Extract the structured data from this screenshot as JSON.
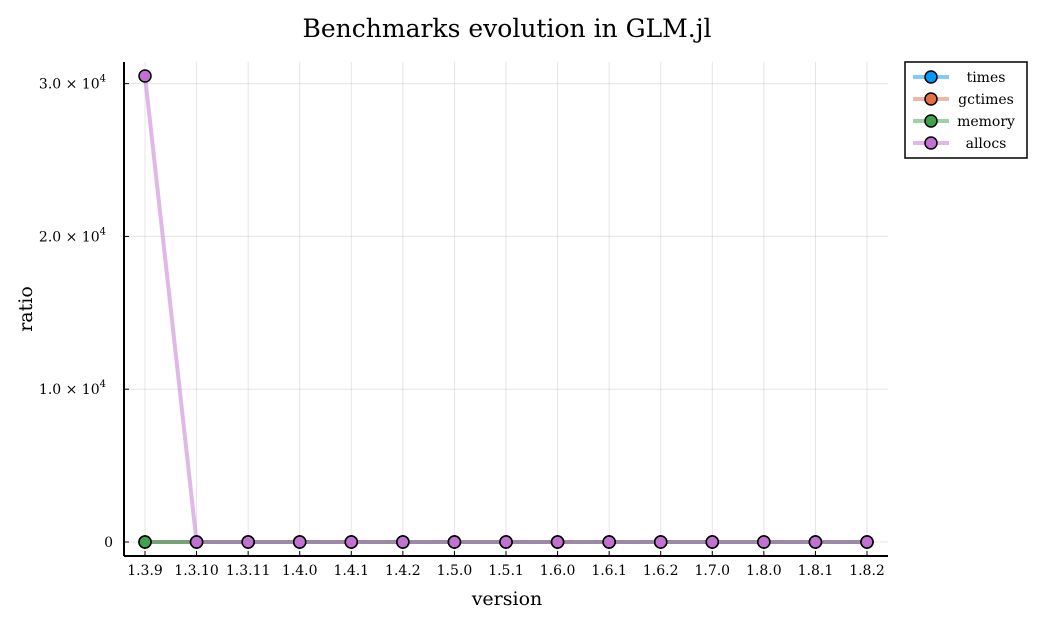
{
  "chart_data": {
    "type": "line",
    "title": "Benchmarks evolution in GLM.jl",
    "xlabel": "version",
    "ylabel": "ratio",
    "categories": [
      "1.3.9",
      "1.3.10",
      "1.3.11",
      "1.4.0",
      "1.4.1",
      "1.4.2",
      "1.5.0",
      "1.5.1",
      "1.6.0",
      "1.6.1",
      "1.6.2",
      "1.7.0",
      "1.8.0",
      "1.8.1",
      "1.8.2"
    ],
    "ylim": [
      -900,
      31500
    ],
    "yticks": [
      {
        "value": 0,
        "mantissa": "0",
        "exp": ""
      },
      {
        "value": 10000,
        "mantissa": "1.0 × 10",
        "exp": "4"
      },
      {
        "value": 20000,
        "mantissa": "2.0 × 10",
        "exp": "4"
      },
      {
        "value": 30000,
        "mantissa": "3.0 × 10",
        "exp": "4"
      }
    ],
    "grid": true,
    "legend_position": "top-right",
    "series": [
      {
        "name": "times",
        "color": "#009af9",
        "values": [
          1,
          1,
          1,
          1,
          1,
          1,
          1,
          1,
          1,
          1,
          1,
          1,
          1,
          1,
          1
        ]
      },
      {
        "name": "gctimes",
        "color": "#e26f46",
        "values": [
          0,
          0,
          0,
          0,
          0,
          0,
          0,
          0,
          0,
          0,
          0,
          0,
          0,
          0,
          0
        ]
      },
      {
        "name": "memory",
        "color": "#3da44d",
        "values": [
          1,
          1,
          1,
          1,
          1,
          1,
          1,
          1,
          1,
          1,
          1,
          1,
          1,
          1,
          1
        ]
      },
      {
        "name": "allocs",
        "color": "#c271d2",
        "values": [
          30500,
          1,
          1,
          1,
          1,
          1,
          1,
          1,
          1,
          1,
          1,
          1,
          1,
          1,
          1
        ]
      }
    ]
  }
}
